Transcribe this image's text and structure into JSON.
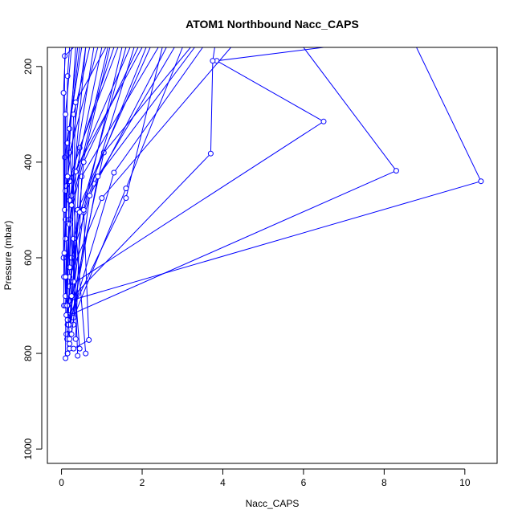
{
  "chart_data": {
    "type": "line",
    "title": "ATOM1 Northbound Nacc_CAPS",
    "xlabel": "Nacc_CAPS",
    "ylabel": "Pressure (mbar)",
    "xlim": [
      -0.35,
      10.8
    ],
    "ylim": [
      1030,
      160
    ],
    "y_reversed": true,
    "grid": false,
    "x_ticks": [
      0,
      2,
      4,
      6,
      8,
      10
    ],
    "y_ticks": [
      200,
      400,
      600,
      800,
      1000
    ],
    "series_color": "#0000ff",
    "series": [
      {
        "points": [
          [
            0.14,
            700
          ],
          [
            0.2,
            440
          ],
          [
            2.0,
            160
          ]
        ]
      },
      {
        "points": [
          [
            0.2,
            720
          ],
          [
            1.6,
            475
          ],
          [
            2.5,
            160
          ]
        ]
      },
      {
        "points": [
          [
            0.6,
            800
          ],
          [
            0.2,
            380
          ],
          [
            0.9,
            160
          ]
        ]
      },
      {
        "points": [
          [
            0.15,
            800
          ],
          [
            0.3,
            300
          ],
          [
            0.7,
            160
          ]
        ]
      },
      {
        "points": [
          [
            0.2,
            690
          ],
          [
            10.4,
            440
          ],
          [
            8.8,
            160
          ]
        ]
      },
      {
        "points": [
          [
            0.2,
            720
          ],
          [
            8.3,
            418
          ],
          [
            6.0,
            160
          ]
        ]
      },
      {
        "points": [
          [
            0.18,
            660
          ],
          [
            6.5,
            315
          ],
          [
            3.85,
            188
          ],
          [
            6.5,
            160
          ]
        ]
      },
      {
        "points": [
          [
            0.18,
            690
          ],
          [
            3.7,
            382
          ],
          [
            3.75,
            188
          ],
          [
            3.8,
            160
          ]
        ]
      },
      {
        "points": [
          [
            0.12,
            760
          ],
          [
            1.3,
            422
          ],
          [
            3.5,
            160
          ]
        ]
      },
      {
        "points": [
          [
            0.15,
            740
          ],
          [
            1.05,
            380
          ],
          [
            3.2,
            160
          ]
        ]
      },
      {
        "points": [
          [
            0.25,
            600
          ],
          [
            0.8,
            445
          ],
          [
            2.8,
            160
          ]
        ]
      },
      {
        "points": [
          [
            0.2,
            640
          ],
          [
            1.0,
            475
          ],
          [
            4.2,
            160
          ]
        ]
      },
      {
        "points": [
          [
            0.3,
            725
          ],
          [
            1.6,
            455
          ],
          [
            3.0,
            160
          ]
        ]
      },
      {
        "points": [
          [
            0.14,
            770
          ],
          [
            0.55,
            505
          ],
          [
            1.8,
            160
          ]
        ]
      },
      {
        "points": [
          [
            0.3,
            740
          ],
          [
            0.45,
            370
          ],
          [
            1.4,
            160
          ]
        ]
      },
      {
        "points": [
          [
            0.06,
            640
          ],
          [
            0.08,
            390
          ],
          [
            0.5,
            160
          ]
        ]
      },
      {
        "points": [
          [
            0.05,
            600
          ],
          [
            0.08,
            178
          ],
          [
            0.3,
            160
          ]
        ]
      },
      {
        "points": [
          [
            0.1,
            520
          ],
          [
            0.15,
            220
          ],
          [
            0.2,
            160
          ]
        ]
      },
      {
        "points": [
          [
            0.06,
            700
          ],
          [
            0.05,
            255
          ],
          [
            0.1,
            160
          ]
        ]
      },
      {
        "points": [
          [
            0.2,
            790
          ],
          [
            0.35,
            275
          ],
          [
            1.1,
            160
          ]
        ]
      },
      {
        "points": [
          [
            0.4,
            805
          ],
          [
            0.25,
            470
          ],
          [
            1.0,
            160
          ]
        ]
      },
      {
        "points": [
          [
            0.1,
            810
          ],
          [
            0.12,
            450
          ],
          [
            0.6,
            160
          ]
        ]
      },
      {
        "points": [
          [
            0.2,
            780
          ],
          [
            0.4,
            500
          ],
          [
            2.2,
            160
          ]
        ]
      },
      {
        "points": [
          [
            0.35,
            770
          ],
          [
            0.5,
            430
          ],
          [
            2.4,
            160
          ]
        ]
      },
      {
        "points": [
          [
            0.45,
            790
          ],
          [
            0.2,
            520
          ],
          [
            1.2,
            160
          ]
        ]
      },
      {
        "points": [
          [
            0.15,
            730
          ],
          [
            0.3,
            560
          ],
          [
            1.6,
            160
          ]
        ]
      },
      {
        "points": [
          [
            0.1,
            700
          ],
          [
            0.2,
            480
          ],
          [
            0.8,
            160
          ]
        ]
      },
      {
        "points": [
          [
            0.25,
            760
          ],
          [
            0.7,
            470
          ],
          [
            2.6,
            160
          ]
        ]
      },
      {
        "points": [
          [
            0.2,
            750
          ],
          [
            0.9,
            430
          ],
          [
            3.3,
            160
          ]
        ]
      },
      {
        "points": [
          [
            0.15,
            700
          ],
          [
            0.1,
            460
          ],
          [
            1.3,
            160
          ]
        ]
      },
      {
        "points": [
          [
            0.3,
            650
          ],
          [
            0.35,
            420
          ],
          [
            1.7,
            160
          ]
        ]
      },
      {
        "points": [
          [
            0.2,
            620
          ],
          [
            0.15,
            360
          ],
          [
            0.4,
            160
          ]
        ]
      },
      {
        "points": [
          [
            0.08,
            500
          ],
          [
            0.1,
            300
          ],
          [
            0.25,
            160
          ]
        ]
      },
      {
        "points": [
          [
            0.1,
            560
          ],
          [
            0.2,
            330
          ],
          [
            0.45,
            160
          ]
        ]
      },
      {
        "points": [
          [
            0.25,
            680
          ],
          [
            0.55,
            400
          ],
          [
            1.9,
            160
          ]
        ]
      },
      {
        "points": [
          [
            0.12,
            720
          ],
          [
            0.45,
            505
          ],
          [
            2.1,
            160
          ]
        ]
      },
      {
        "points": [
          [
            0.3,
            790
          ],
          [
            0.68,
            772
          ],
          [
            0.55,
            500
          ],
          [
            1.5,
            160
          ]
        ]
      },
      {
        "points": [
          [
            0.18,
            740
          ],
          [
            0.14,
            700
          ],
          [
            0.2,
            530
          ],
          [
            0.6,
            160
          ]
        ]
      },
      {
        "points": [
          [
            0.1,
            680
          ],
          [
            0.07,
            590
          ],
          [
            0.15,
            430
          ],
          [
            0.35,
            160
          ]
        ]
      },
      {
        "points": [
          [
            0.2,
            770
          ],
          [
            0.1,
            640
          ],
          [
            0.25,
            490
          ],
          [
            1.15,
            160
          ]
        ]
      }
    ]
  }
}
